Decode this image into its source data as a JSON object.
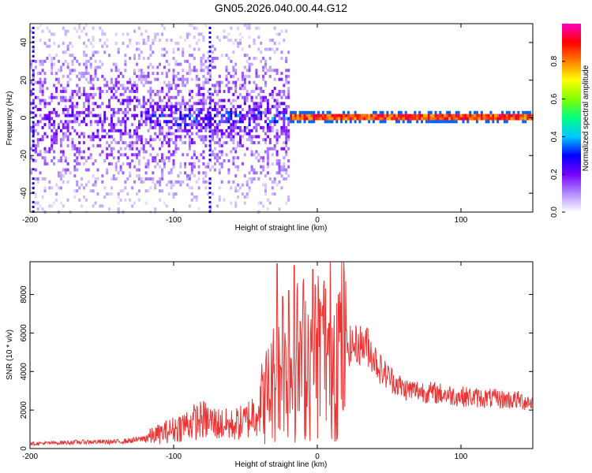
{
  "title": "GN05.2026.040.00.44.G12",
  "chart_data": [
    {
      "type": "heatmap",
      "title": "GN05.2026.040.00.44.G12",
      "xlabel": "Height of straight line (km)",
      "ylabel": "Frequency (Hz)",
      "xlim": [
        -200,
        150
      ],
      "ylim": [
        -50,
        50
      ],
      "x_ticks": [
        "-200",
        "-100",
        "0",
        "100"
      ],
      "y_ticks": [
        "-40",
        "-20",
        "0",
        "20",
        "40"
      ],
      "colorbar": {
        "label": "Normalized spectral amplitude",
        "range": [
          0,
          1
        ],
        "ticks": [
          "0.0",
          "0.2",
          "0.4",
          "0.6",
          "0.8"
        ],
        "colors": [
          "#ffffff",
          "#b08cff",
          "#7a00ff",
          "#0000ff",
          "#00c8ff",
          "#00ff80",
          "#80ff00",
          "#ffff00",
          "#ff8000",
          "#ff0000",
          "#ff00c0"
        ]
      },
      "features": [
        {
          "name": "broadband scatter",
          "x_range": [
            -200,
            -20
          ],
          "freq_range": [
            -50,
            50
          ],
          "amplitude": 0.2
        },
        {
          "name": "central cluster",
          "x_range": [
            -120,
            -20
          ],
          "freq_range": [
            -10,
            10
          ],
          "amplitude": 0.35
        },
        {
          "name": "narrowband carrier",
          "x_range": [
            -20,
            150
          ],
          "freq": 0,
          "amplitude": 0.95
        }
      ]
    },
    {
      "type": "line",
      "xlabel": "Height of straight line (km)",
      "ylabel": "SNR (10 * v/v)",
      "xlim": [
        -200,
        150
      ],
      "ylim": [
        0,
        9700
      ],
      "x_ticks": [
        "-200",
        "-100",
        "0",
        "100"
      ],
      "y_ticks": [
        "0",
        "2000",
        "4000",
        "6000",
        "8000"
      ],
      "color": "#ee3333",
      "series": [
        {
          "x": [
            -200,
            -180,
            -160,
            -140,
            -125,
            -115,
            -100,
            -90,
            -80,
            -70,
            -60,
            -50,
            -40,
            -30,
            -20,
            -10,
            0,
            10,
            20,
            30,
            35,
            45,
            60,
            80,
            100,
            120,
            140,
            150
          ],
          "values": [
            250,
            300,
            350,
            350,
            450,
            650,
            1000,
            1300,
            1500,
            1300,
            1200,
            1400,
            2200,
            3500,
            4200,
            4800,
            5000,
            5200,
            5300,
            5400,
            5300,
            4000,
            3100,
            2900,
            2700,
            2600,
            2500,
            2400
          ]
        }
      ],
      "spikes": [
        {
          "x": -28,
          "y": 9600
        },
        {
          "x": -24,
          "y": 7900
        },
        {
          "x": -20,
          "y": 8200
        },
        {
          "x": -16,
          "y": 9500
        },
        {
          "x": -12,
          "y": 6600
        },
        {
          "x": -3,
          "y": 9300
        },
        {
          "x": 3,
          "y": 6900
        },
        {
          "x": 8,
          "y": 6500
        },
        {
          "x": 35,
          "y": 6200
        }
      ]
    }
  ]
}
